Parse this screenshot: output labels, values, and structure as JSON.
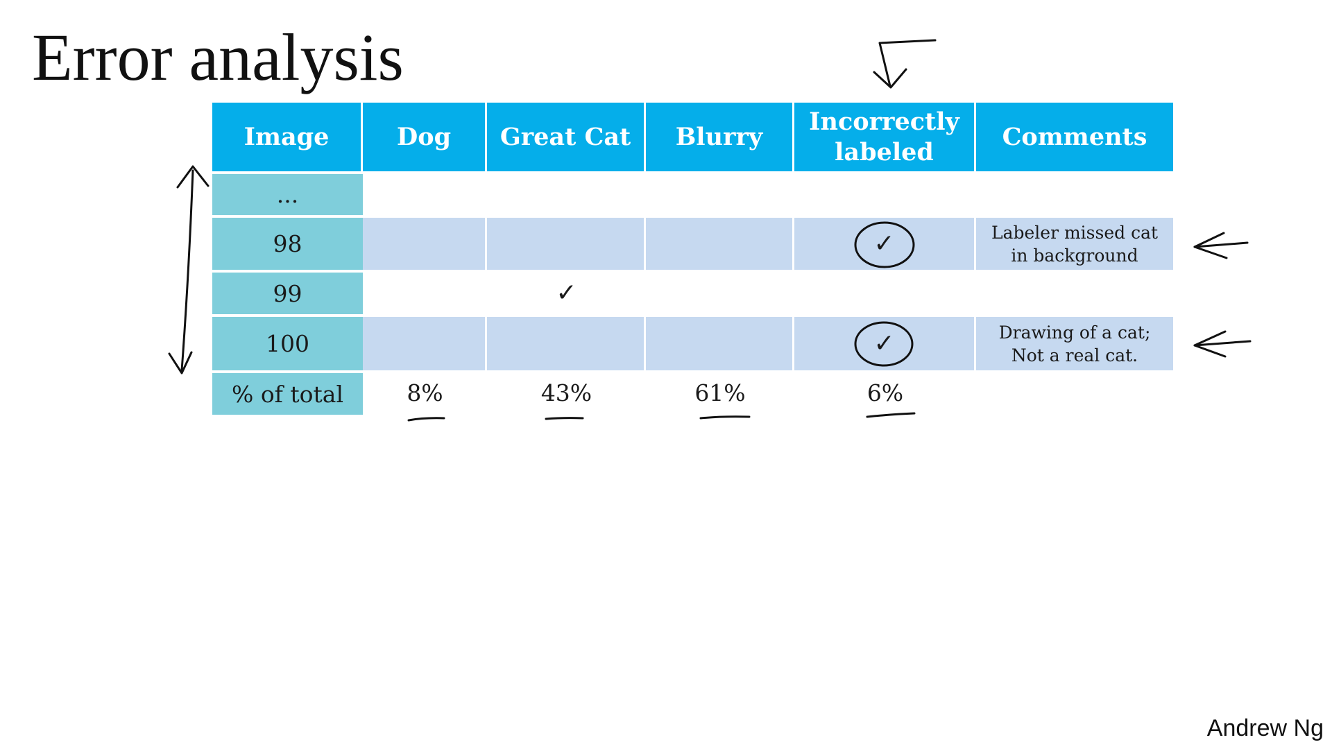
{
  "slide": {
    "title": "Error analysis",
    "author": "Andrew Ng"
  },
  "table": {
    "headers": [
      "Image",
      "Dog",
      "Great Cat",
      "Blurry",
      "Incorrectly labeled",
      "Comments"
    ],
    "rows": [
      {
        "image": "...",
        "dog": "",
        "great_cat": "",
        "blurry": "",
        "incorrectly_labeled": "",
        "comments": ""
      },
      {
        "image": "98",
        "dog": "",
        "great_cat": "",
        "blurry": "",
        "incorrectly_labeled": "✓",
        "comments": "Labeler missed cat in background"
      },
      {
        "image": "99",
        "dog": "",
        "great_cat": "✓",
        "blurry": "",
        "incorrectly_labeled": "",
        "comments": ""
      },
      {
        "image": "100",
        "dog": "",
        "great_cat": "",
        "blurry": "",
        "incorrectly_labeled": "✓",
        "comments": "Drawing of a cat; Not a real cat."
      }
    ],
    "totals": {
      "label": "% of total",
      "dog": "8%",
      "great_cat": "43%",
      "blurry": "61%",
      "incorrectly_labeled": "6%"
    }
  },
  "colors": {
    "header_bg": "#05aeea",
    "row_label_bg": "#7fcedb",
    "shaded_row_bg": "#c6d9f0",
    "ink": "#111111"
  }
}
